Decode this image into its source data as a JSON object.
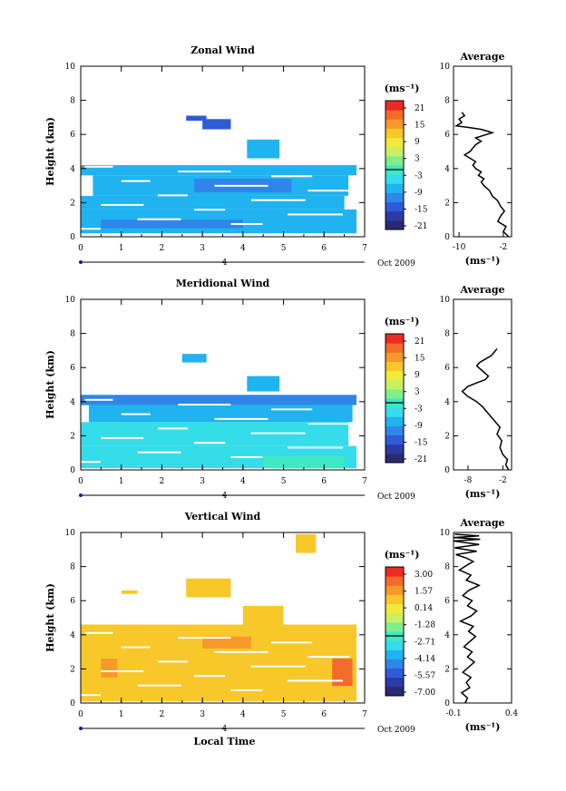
{
  "date_label": "Oct 2009",
  "day_label": "4",
  "colorbar_unit": "(ms⁻¹)",
  "avg_title": "Average",
  "xlabel_bottom": "Local Time",
  "colors": {
    "colormap": [
      "#2a2a70",
      "#2b3aa6",
      "#2f5bd6",
      "#2f86e8",
      "#1fb3ef",
      "#35dcea",
      "#3ee8c4",
      "#7fef8c",
      "#c9f062",
      "#f2e93a",
      "#f8c72a",
      "#f7982a",
      "#f36b2a",
      "#ee2a22"
    ]
  },
  "chart_data": [
    {
      "type": "heatmap",
      "title": "Zonal Wind",
      "xlabel": "",
      "ylabel": "Height (km)",
      "xlim": [
        0,
        7
      ],
      "ylim": [
        0,
        10
      ],
      "xticks": [
        0,
        1,
        2,
        3,
        4,
        5,
        6,
        7
      ],
      "yticks": [
        0,
        2,
        4,
        6,
        8,
        10
      ],
      "colorbar_ticks": [
        "21",
        "15",
        "9",
        "3",
        "-3",
        "-9",
        "-15",
        "-21"
      ],
      "vmin": -24,
      "vmax": 24,
      "patches": [
        {
          "t0": 2.6,
          "t1": 3.1,
          "h0": 6.8,
          "h1": 7.1,
          "v": -16
        },
        {
          "t0": 3.0,
          "t1": 3.7,
          "h0": 6.3,
          "h1": 6.9,
          "v": -16
        },
        {
          "t0": 4.1,
          "t1": 4.9,
          "h0": 4.6,
          "h1": 5.7,
          "v": -8
        },
        {
          "t0": 0.0,
          "t1": 6.8,
          "h0": 3.6,
          "h1": 4.2,
          "v": -10
        },
        {
          "t0": 0.3,
          "t1": 6.6,
          "h0": 2.4,
          "h1": 3.6,
          "v": -8
        },
        {
          "t0": 0.0,
          "t1": 6.5,
          "h0": 1.6,
          "h1": 2.4,
          "v": -7
        },
        {
          "t0": 0.0,
          "t1": 6.8,
          "h0": 0.2,
          "h1": 1.6,
          "v": -8
        },
        {
          "t0": 2.8,
          "t1": 5.2,
          "h0": 2.6,
          "h1": 3.4,
          "v": -11
        },
        {
          "t0": 0.5,
          "t1": 4.0,
          "h0": 0.5,
          "h1": 1.0,
          "v": -11
        }
      ],
      "average": {
        "xlim": [
          -11,
          -0.5
        ],
        "xticks": [
          -10,
          -2
        ],
        "ylim": [
          0,
          10
        ],
        "yticks": [
          0,
          2,
          4,
          6,
          8,
          10
        ],
        "x": [
          -1.0,
          -2.0,
          -1.5,
          -3.0,
          -2.5,
          -1.8,
          -2.5,
          -3.0,
          -4.0,
          -4.5,
          -5.5,
          -6.0,
          -5.5,
          -6.5,
          -6.0,
          -7.0,
          -7.5,
          -7.0,
          -8.0,
          -9.0,
          -8.0,
          -7.5,
          -7.0,
          -6.0,
          -7.0,
          -5.0,
          -4.0,
          -5.0,
          -6.0,
          -8.0,
          -10.5,
          -9.5,
          -10.0,
          -9.0,
          -9.5
        ],
        "y": [
          0.0,
          0.3,
          0.6,
          0.9,
          1.2,
          1.5,
          1.8,
          2.1,
          2.4,
          2.7,
          3.0,
          3.2,
          3.4,
          3.6,
          3.8,
          4.0,
          4.2,
          4.4,
          4.6,
          4.8,
          5.0,
          5.2,
          5.4,
          5.6,
          5.8,
          6.0,
          6.1,
          6.2,
          6.3,
          6.4,
          6.5,
          6.7,
          6.9,
          7.1,
          7.3
        ]
      }
    },
    {
      "type": "heatmap",
      "title": "Meridional Wind",
      "xlabel": "",
      "ylabel": "Height (km)",
      "xlim": [
        0,
        7
      ],
      "ylim": [
        0,
        10
      ],
      "xticks": [
        0,
        1,
        2,
        3,
        4,
        5,
        6,
        7
      ],
      "yticks": [
        0,
        2,
        4,
        6,
        8,
        10
      ],
      "colorbar_ticks": [
        "21",
        "15",
        "9",
        "3",
        "-3",
        "-9",
        "-15",
        "-21"
      ],
      "vmin": -24,
      "vmax": 24,
      "patches": [
        {
          "t0": 2.5,
          "t1": 3.1,
          "h0": 6.3,
          "h1": 6.8,
          "v": -8
        },
        {
          "t0": 4.1,
          "t1": 4.9,
          "h0": 4.6,
          "h1": 5.5,
          "v": -10
        },
        {
          "t0": 0.0,
          "t1": 6.8,
          "h0": 3.8,
          "h1": 4.4,
          "v": -13
        },
        {
          "t0": 0.2,
          "t1": 6.7,
          "h0": 2.8,
          "h1": 3.8,
          "v": -7
        },
        {
          "t0": 0.0,
          "t1": 6.6,
          "h0": 1.4,
          "h1": 2.8,
          "v": -6
        },
        {
          "t0": 0.0,
          "t1": 6.8,
          "h0": 0.1,
          "h1": 1.4,
          "v": -6
        },
        {
          "t0": 4.5,
          "t1": 6.5,
          "h0": 0.1,
          "h1": 0.8,
          "v": -2
        }
      ],
      "average": {
        "xlim": [
          -10.5,
          -0.5
        ],
        "xticks": [
          -8,
          -2
        ],
        "ylim": [
          0,
          10
        ],
        "yticks": [
          0,
          2,
          4,
          6,
          8,
          10
        ],
        "x": [
          -1.0,
          -1.5,
          -1.2,
          -2.0,
          -2.5,
          -2.2,
          -3.0,
          -2.5,
          -3.5,
          -4.5,
          -5.5,
          -6.5,
          -8.0,
          -9.0,
          -8.0,
          -6.5,
          -5.0,
          -4.5,
          -5.5,
          -6.5,
          -6.0,
          -5.0,
          -4.0,
          -3.5,
          -3.0
        ],
        "y": [
          0.0,
          0.3,
          0.6,
          0.9,
          1.3,
          1.7,
          2.1,
          2.5,
          2.9,
          3.3,
          3.7,
          4.0,
          4.3,
          4.6,
          4.9,
          5.1,
          5.3,
          5.5,
          5.8,
          6.1,
          6.3,
          6.5,
          6.7,
          6.9,
          7.1
        ]
      }
    },
    {
      "type": "heatmap",
      "title": "Vertical Wind",
      "xlabel": "Local Time",
      "ylabel": "Height (km)",
      "xlim": [
        0,
        7
      ],
      "ylim": [
        0,
        10
      ],
      "xticks": [
        0,
        1,
        2,
        3,
        4,
        5,
        6,
        7
      ],
      "yticks": [
        0,
        2,
        4,
        6,
        8,
        10
      ],
      "colorbar_ticks": [
        "3.00",
        "1.57",
        "0.14",
        "-1.28",
        "-2.71",
        "-4.14",
        "-5.57",
        "-7.00"
      ],
      "vmin": -7.0,
      "vmax": 3.0,
      "patches": [
        {
          "t0": 5.3,
          "t1": 5.8,
          "h0": 8.8,
          "h1": 9.9,
          "v": 0.5
        },
        {
          "t0": 2.6,
          "t1": 3.7,
          "h0": 6.2,
          "h1": 7.3,
          "v": 0.8
        },
        {
          "t0": 1.0,
          "t1": 1.4,
          "h0": 6.4,
          "h1": 6.6,
          "v": 0.5
        },
        {
          "t0": 4.0,
          "t1": 5.0,
          "h0": 4.3,
          "h1": 5.7,
          "v": 0.5
        },
        {
          "t0": 0.0,
          "t1": 6.8,
          "h0": 0.1,
          "h1": 4.6,
          "v": 0.4
        },
        {
          "t0": 3.0,
          "t1": 4.2,
          "h0": 3.2,
          "h1": 3.9,
          "v": 1.3
        },
        {
          "t0": 0.5,
          "t1": 0.9,
          "h0": 1.5,
          "h1": 2.6,
          "v": 1.3
        },
        {
          "t0": 6.2,
          "t1": 6.7,
          "h0": 1.0,
          "h1": 2.6,
          "v": 2.0
        }
      ],
      "average": {
        "xlim": [
          -0.1,
          0.4
        ],
        "xticks": [
          -0.1,
          0.4
        ],
        "ylim": [
          0,
          10
        ],
        "yticks": [
          0,
          2,
          4,
          6,
          8,
          10
        ],
        "x": [
          0.0,
          0.02,
          -0.03,
          0.04,
          0.01,
          0.05,
          -0.02,
          0.03,
          0.08,
          0.02,
          0.06,
          -0.01,
          0.04,
          0.09,
          0.03,
          0.07,
          -0.04,
          0.05,
          0.1,
          0.02,
          0.06,
          -0.02,
          0.03,
          0.12,
          0.01,
          0.05,
          -0.05,
          0.02,
          0.07,
          0.01,
          -0.08,
          0.1,
          -0.09,
          0.12,
          -0.1,
          0.13,
          -0.1,
          0.12,
          -0.09
        ],
        "y": [
          0.0,
          0.3,
          0.6,
          0.9,
          1.2,
          1.5,
          1.8,
          2.1,
          2.4,
          2.7,
          3.0,
          3.3,
          3.6,
          3.9,
          4.2,
          4.5,
          4.8,
          5.1,
          5.4,
          5.7,
          6.0,
          6.3,
          6.6,
          6.9,
          7.2,
          7.5,
          7.8,
          8.1,
          8.3,
          8.5,
          8.7,
          8.9,
          9.1,
          9.3,
          9.5,
          9.6,
          9.7,
          9.8,
          9.9
        ]
      }
    }
  ]
}
